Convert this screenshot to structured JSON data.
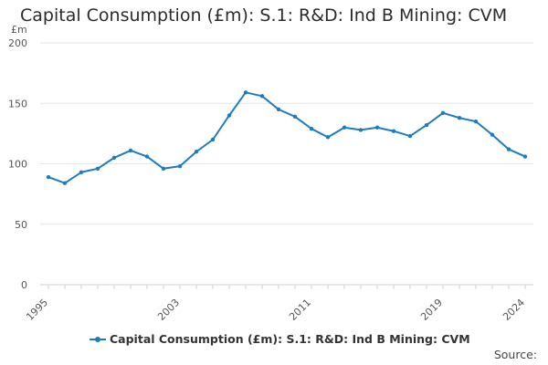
{
  "chart_data": {
    "type": "line",
    "title": "Capital Consumption (£m): S.1: R&D: Ind B Mining: CVM",
    "ylabel": "£m",
    "xlabel": "",
    "ylim": [
      0,
      200
    ],
    "yticks": [
      0,
      50,
      100,
      150,
      200
    ],
    "xticks": [
      "1995",
      "2003",
      "2011",
      "2019",
      "2024"
    ],
    "x": [
      1995,
      1996,
      1997,
      1998,
      1999,
      2000,
      2001,
      2002,
      2003,
      2004,
      2005,
      2006,
      2007,
      2008,
      2009,
      2010,
      2011,
      2012,
      2013,
      2014,
      2015,
      2016,
      2017,
      2018,
      2019,
      2020,
      2021,
      2022,
      2023,
      2024
    ],
    "series": [
      {
        "name": "Capital Consumption (£m): S.1: R&D: Ind B Mining: CVM",
        "values": [
          89,
          84,
          93,
          96,
          105,
          111,
          106,
          96,
          98,
          110,
          120,
          140,
          159,
          156,
          145,
          139,
          129,
          122,
          130,
          128,
          130,
          127,
          123,
          132,
          142,
          138,
          135,
          124,
          112,
          106
        ]
      }
    ],
    "grid": true,
    "legend": "bottom-center",
    "color": "#1f7bbf"
  },
  "footer": {
    "source_label": "Source:"
  }
}
